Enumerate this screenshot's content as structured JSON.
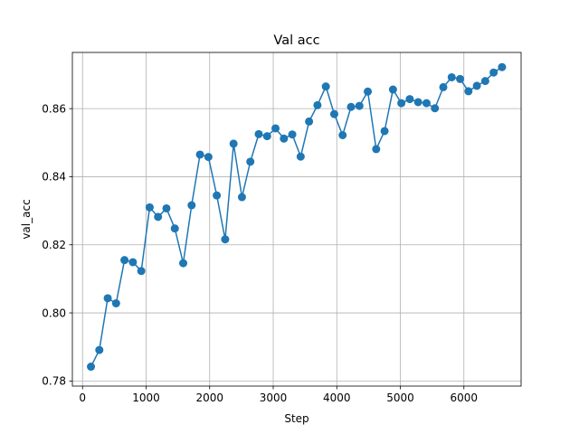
{
  "chart_data": {
    "type": "line",
    "title": "Val acc",
    "xlabel": "Step",
    "ylabel": "val_acc",
    "grid": true,
    "markers": "circle",
    "color": "#1f77b4",
    "xlim": [
      -160,
      6900
    ],
    "ylim": [
      0.7785,
      0.8765
    ],
    "xticks": [
      0,
      1000,
      2000,
      3000,
      4000,
      5000,
      6000
    ],
    "xtick_labels": [
      "0",
      "1000",
      "2000",
      "3000",
      "4000",
      "5000",
      "6000"
    ],
    "yticks": [
      0.78,
      0.8,
      0.82,
      0.84,
      0.86
    ],
    "ytick_labels": [
      "0.78",
      "0.80",
      "0.82",
      "0.84",
      "0.86"
    ],
    "series": [
      {
        "x": [
          132,
          264,
          396,
          528,
          660,
          792,
          924,
          1056,
          1188,
          1320,
          1452,
          1584,
          1716,
          1848,
          1980,
          2112,
          2244,
          2376,
          2508,
          2640,
          2772,
          2904,
          3036,
          3168,
          3300,
          3432,
          3564,
          3696,
          3828,
          3960,
          4092,
          4224,
          4356,
          4488,
          4620,
          4752,
          4884,
          5016,
          5148,
          5280,
          5412,
          5544,
          5676,
          5808,
          5940,
          6072,
          6204,
          6336,
          6468,
          6600
        ],
        "y": [
          0.7842,
          0.7891,
          0.8043,
          0.8028,
          0.8155,
          0.8149,
          0.8123,
          0.831,
          0.8282,
          0.8307,
          0.8248,
          0.8146,
          0.8316,
          0.8465,
          0.8458,
          0.8345,
          0.8216,
          0.8497,
          0.834,
          0.8444,
          0.8525,
          0.8519,
          0.8542,
          0.8512,
          0.8524,
          0.8459,
          0.8562,
          0.861,
          0.8665,
          0.8584,
          0.8522,
          0.8605,
          0.8608,
          0.865,
          0.8481,
          0.8534,
          0.8656,
          0.8616,
          0.8628,
          0.8619,
          0.8616,
          0.8601,
          0.8663,
          0.8692,
          0.8687,
          0.8651,
          0.8667,
          0.8681,
          0.8706,
          0.8722
        ]
      }
    ]
  }
}
